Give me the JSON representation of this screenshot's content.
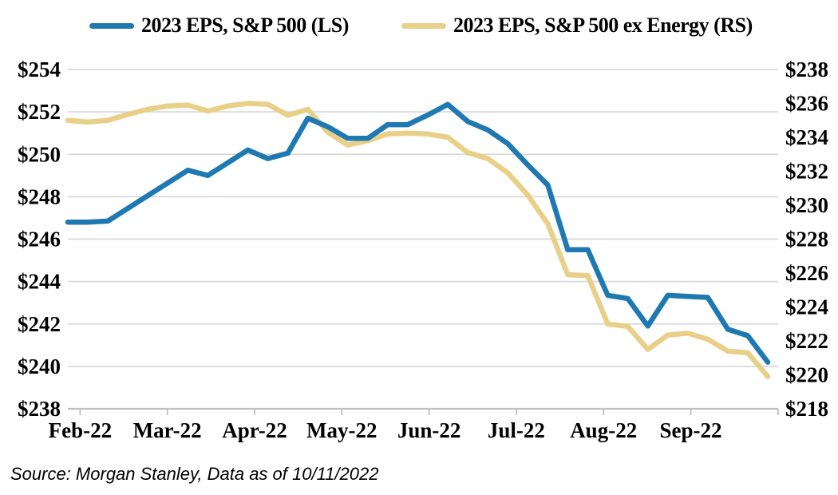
{
  "legend": [
    {
      "label": "2023 EPS, S&P 500 (LS)",
      "color": "#1E79B2"
    },
    {
      "label": "2023 EPS, S&P 500 ex Energy (RS)",
      "color": "#E9D089"
    }
  ],
  "source_note": "Source: Morgan Stanley, Data as of 10/11/2022",
  "chart_data": {
    "type": "line",
    "x_labels": [
      "Feb-22",
      "Mar-22",
      "Apr-22",
      "May-22",
      "Jun-22",
      "Jul-22",
      "Aug-22",
      "Sep-22"
    ],
    "frequency": "weekly",
    "series": [
      {
        "name": "2023 EPS, S&P 500 (LS)",
        "axis": "left",
        "color": "#1E79B2",
        "values": [
          246.8,
          246.8,
          246.85,
          247.45,
          248.05,
          248.65,
          249.25,
          249.0,
          249.6,
          250.2,
          249.8,
          250.05,
          251.7,
          251.3,
          250.75,
          250.75,
          251.4,
          251.4,
          251.85,
          252.35,
          251.55,
          251.15,
          250.5,
          249.5,
          248.55,
          245.5,
          245.5,
          243.35,
          243.2,
          241.9,
          243.35,
          243.3,
          243.25,
          241.75,
          241.45,
          240.2
        ]
      },
      {
        "name": "2023 EPS, S&P 500 ex Energy (RS)",
        "axis": "right",
        "color": "#E9D089",
        "values": [
          235.0,
          234.9,
          235.0,
          235.35,
          235.65,
          235.85,
          235.9,
          235.55,
          235.85,
          236.0,
          235.95,
          235.3,
          235.65,
          234.3,
          233.55,
          233.8,
          234.2,
          234.25,
          234.2,
          234.0,
          233.1,
          232.75,
          231.9,
          230.6,
          228.9,
          225.9,
          225.85,
          223.0,
          222.85,
          221.5,
          222.35,
          222.45,
          222.1,
          221.4,
          221.3,
          219.9
        ]
      }
    ],
    "left_axis": {
      "min": 238,
      "max": 254,
      "step": 2,
      "tick_prefix": "$",
      "tick_labels": [
        "$254",
        "$252",
        "$250",
        "$248",
        "$246",
        "$244",
        "$242",
        "$240",
        "$238"
      ]
    },
    "right_axis": {
      "min": 218,
      "max": 238,
      "step": 2,
      "tick_prefix": "$",
      "tick_labels": [
        "$238",
        "$236",
        "$234",
        "$232",
        "$230",
        "$228",
        "$226",
        "$224",
        "$222",
        "$220",
        "$218"
      ]
    },
    "grid": true,
    "grid_color": "#D9D9D9",
    "axis_line_color": "#BFBFBF",
    "legend_position": "top"
  }
}
